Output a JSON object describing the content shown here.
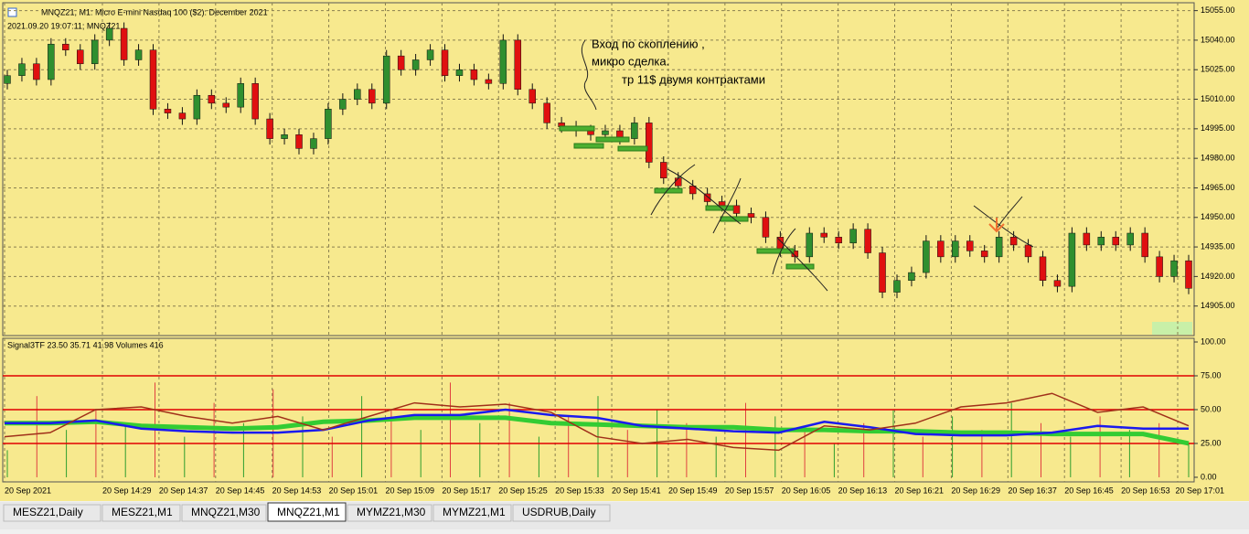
{
  "header": {
    "title": "MNQZ21, M1:  Micro E-mini Nasdaq 100 ($2): December 2021",
    "info": "2021.09.20 19:07:11; MNQZ21"
  },
  "price_chart": {
    "type": "candlestick",
    "ylim": [
      14890,
      15059
    ],
    "yticks": [
      {
        "value": 15055,
        "label": "15055.00"
      },
      {
        "value": 15040,
        "label": "15040.00"
      },
      {
        "value": 15025,
        "label": "15025.00"
      },
      {
        "value": 15010,
        "label": "15010.00"
      },
      {
        "value": 14995,
        "label": "14995.00"
      },
      {
        "value": 14980,
        "label": "14980.00"
      },
      {
        "value": 14965,
        "label": "14965.00"
      },
      {
        "value": 14950,
        "label": "14950.00"
      },
      {
        "value": 14935,
        "label": "14935.00"
      },
      {
        "value": 14920,
        "label": "14920.00"
      },
      {
        "value": 14905,
        "label": "14905.00"
      }
    ],
    "grid": true,
    "up_color": "#2f8f2f",
    "down_color": "#e01010",
    "open": [
      15018,
      15022,
      15028,
      15020,
      15038,
      15035,
      15028,
      15040,
      15046,
      15030,
      15035,
      15005,
      15003,
      15000,
      15012,
      15008,
      15006,
      15018,
      15000,
      14990,
      14992,
      14985,
      14990,
      15005,
      15010,
      15015,
      15008,
      15032,
      15025,
      15030,
      15035,
      15022,
      15025,
      15020,
      15018,
      15040,
      15015,
      15008,
      14998,
      14996,
      14994,
      14992,
      14994,
      14990,
      14998,
      14978,
      14970,
      14966,
      14962,
      14958,
      14956,
      14952,
      14950,
      14940,
      14933,
      14930,
      14942,
      14940,
      14937,
      14944,
      14932,
      14912,
      14918,
      14922,
      14938,
      14930,
      14938,
      14933,
      14930,
      14940,
      14936,
      14930,
      14918,
      14915,
      14942,
      14936,
      14940,
      14936,
      14942,
      14930,
      14920,
      14928
    ],
    "high": [
      15025,
      15031,
      15031,
      15041,
      15041,
      15038,
      15043,
      15049,
      15049,
      15038,
      15038,
      15008,
      15006,
      15015,
      15015,
      15011,
      15021,
      15021,
      15003,
      14995,
      14995,
      14993,
      15008,
      15013,
      15018,
      15018,
      15035,
      15035,
      15033,
      15038,
      15038,
      15028,
      15028,
      15023,
      15043,
      15043,
      15018,
      15011,
      15001,
      14999,
      14997,
      14997,
      14997,
      15001,
      15001,
      14981,
      14973,
      14969,
      14965,
      14961,
      14959,
      14955,
      14953,
      14943,
      14936,
      14945,
      14945,
      14943,
      14947,
      14947,
      14935,
      14921,
      14925,
      14941,
      14941,
      14941,
      14941,
      14936,
      14943,
      14943,
      14939,
      14933,
      14921,
      14945,
      14945,
      14943,
      14943,
      14945,
      14945,
      14933,
      14931,
      14931
    ],
    "low": [
      15015,
      15019,
      15017,
      15017,
      15032,
      15025,
      15025,
      15037,
      15027,
      15027,
      15002,
      15000,
      14997,
      14997,
      15005,
      15003,
      15003,
      14997,
      14987,
      14987,
      14982,
      14982,
      14987,
      15002,
      15007,
      15005,
      15005,
      15022,
      15022,
      15027,
      15019,
      15019,
      15017,
      15015,
      15015,
      15012,
      15005,
      14995,
      14993,
      14991,
      14989,
      14989,
      14987,
      14987,
      14975,
      14967,
      14963,
      14959,
      14955,
      14953,
      14949,
      14947,
      14937,
      14930,
      14927,
      14927,
      14937,
      14934,
      14934,
      14929,
      14909,
      14909,
      14915,
      14919,
      14927,
      14927,
      14930,
      14927,
      14927,
      14933,
      14927,
      14915,
      14912,
      14912,
      14933,
      14933,
      14933,
      14933,
      14927,
      14917,
      14917,
      14911
    ],
    "close": [
      15022,
      15028,
      15020,
      15038,
      15035,
      15028,
      15040,
      15046,
      15030,
      15035,
      15005,
      15003,
      15000,
      15012,
      15008,
      15006,
      15018,
      15000,
      14990,
      14992,
      14985,
      14990,
      15005,
      15010,
      15015,
      15008,
      15032,
      15025,
      15030,
      15035,
      15022,
      15025,
      15020,
      15018,
      15040,
      15015,
      15008,
      14998,
      14996,
      14994,
      14992,
      14994,
      14990,
      14998,
      14978,
      14970,
      14966,
      14962,
      14958,
      14956,
      14952,
      14950,
      14940,
      14933,
      14930,
      14942,
      14940,
      14937,
      14944,
      14932,
      14912,
      14918,
      14922,
      14938,
      14930,
      14938,
      14933,
      14930,
      14940,
      14936,
      14930,
      14918,
      14915,
      14942,
      14936,
      14940,
      14936,
      14942,
      14930,
      14920,
      14928,
      14914
    ]
  },
  "indicator": {
    "label": "Signal3TF 23.50 35.71 41.98 Volumes 416",
    "ylim": [
      -3.4,
      102.7
    ],
    "yticks": [
      {
        "value": 100,
        "label": "100.00"
      },
      {
        "value": 75,
        "label": "75.00"
      },
      {
        "value": 50,
        "label": "50.00"
      },
      {
        "value": 25,
        "label": "25.00"
      },
      {
        "value": 0,
        "label": "0.00"
      }
    ],
    "levels": [
      75,
      50,
      25
    ],
    "level_color": "#e00000",
    "volume_color": "#2e9e2e",
    "volumes": [
      20,
      60,
      35,
      50,
      40,
      70,
      30,
      55,
      40,
      65,
      45,
      30,
      60,
      50,
      35,
      70,
      40,
      55,
      30,
      45,
      60,
      35,
      50,
      40,
      30,
      55,
      45,
      35,
      25,
      40,
      50,
      30,
      45,
      35,
      55,
      40,
      30,
      45,
      35,
      40,
      25
    ],
    "series": [
      {
        "color": "#33cc33",
        "width": 5,
        "values": [
          40,
          40,
          41,
          38,
          37,
          36,
          37,
          41,
          42,
          44,
          44,
          44,
          40,
          39,
          38,
          37,
          37,
          35,
          35,
          34,
          34,
          33,
          33,
          32,
          32,
          32,
          25
        ]
      },
      {
        "color": "#1a1aee",
        "width": 2.5,
        "values": [
          40,
          40,
          42,
          36,
          34,
          33,
          33,
          35,
          42,
          46,
          46,
          50,
          46,
          44,
          38,
          36,
          34,
          33,
          41,
          37,
          32,
          31,
          31,
          33,
          38,
          36,
          36
        ]
      },
      {
        "color": "#a0301a",
        "width": 1.5,
        "values": [
          30,
          33,
          50,
          52,
          45,
          40,
          45,
          35,
          45,
          55,
          52,
          54,
          48,
          30,
          25,
          28,
          22,
          20,
          38,
          35,
          40,
          52,
          55,
          62,
          48,
          52,
          38
        ]
      }
    ]
  },
  "x_axis": {
    "labels": [
      "20 Sep 2021",
      "20 Sep 14:29",
      "20 Sep 14:37",
      "20 Sep 14:45",
      "20 Sep 14:53",
      "20 Sep 15:01",
      "20 Sep 15:09",
      "20 Sep 15:17",
      "20 Sep 15:25",
      "20 Sep 15:33",
      "20 Sep 15:41",
      "20 Sep 15:49",
      "20 Sep 15:57",
      "20 Sep 16:05",
      "20 Sep 16:13",
      "20 Sep 16:21",
      "20 Sep 16:29",
      "20 Sep 16:37",
      "20 Sep 16:45",
      "20 Sep 16:53",
      "20 Sep 17:01"
    ]
  },
  "annotations": [
    "Вход по скоплению ,",
    "микро сделка.",
    "тр 11$ двумя контрактами"
  ],
  "tabs": {
    "items": [
      "MESZ21,Daily",
      "MESZ21,M1",
      "MNQZ21,M30",
      "MNQZ21,M1",
      "MYMZ21,M30",
      "MYMZ21,M1",
      "USDRUB,Daily"
    ],
    "active": 3
  }
}
